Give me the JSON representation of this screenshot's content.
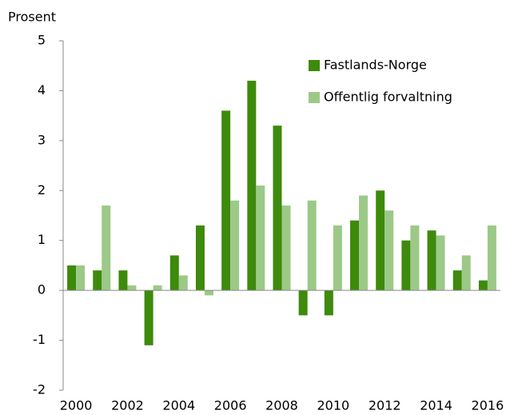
{
  "chart_data": {
    "type": "bar",
    "y_label": "Prosent",
    "categories": [
      "2000",
      null,
      "2002",
      null,
      "2004",
      null,
      "2006",
      null,
      "2008",
      null,
      "2010",
      null,
      "2012",
      null,
      "2014",
      null,
      "2016"
    ],
    "series": [
      {
        "name": "Fastlands-Norge",
        "color": "#3d8a0c",
        "values": [
          0.5,
          0.4,
          0.4,
          -1.1,
          0.7,
          1.3,
          3.6,
          4.2,
          3.3,
          -0.5,
          -0.5,
          1.4,
          2.0,
          1.0,
          1.2,
          0.4,
          0.2
        ]
      },
      {
        "name": "Offentlig forvaltning",
        "color": "#9cc987",
        "values": [
          0.5,
          1.7,
          0.1,
          0.1,
          0.3,
          -0.1,
          1.8,
          2.1,
          1.7,
          1.8,
          1.3,
          1.9,
          1.6,
          1.3,
          1.1,
          0.7,
          1.3
        ]
      }
    ],
    "ylim": [
      -2,
      5
    ],
    "yticks": [
      -2,
      -1,
      0,
      1,
      2,
      3,
      4,
      5
    ],
    "grid": false,
    "legend": "top-right"
  }
}
